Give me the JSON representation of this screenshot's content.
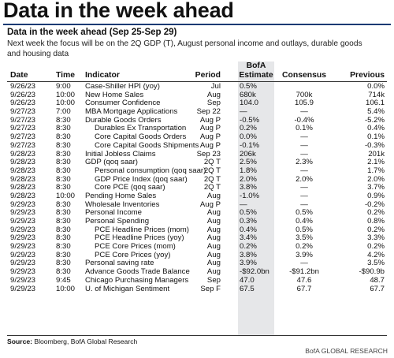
{
  "title": "Data in the week ahead",
  "subtitle": "Data in the week ahead (Sep 25-Sep 29)",
  "description": "Next week the focus will be on the 2Q GDP (T), August personal income and outlays, durable goods and housing data",
  "headers": {
    "date": "Date",
    "time": "Time",
    "indicator": "Indicator",
    "period": "Period",
    "bofa_line1": "BofA",
    "bofa_line2": "Estimate",
    "consensus": "Consensus",
    "previous": "Previous"
  },
  "rows": [
    {
      "date": "9/26/23",
      "time": "9:00",
      "indicator": "Case-Shiller HPI (yoy)",
      "indent": false,
      "period": "Jul",
      "bofa": "0.5%",
      "consensus": "",
      "previous": "0.0%"
    },
    {
      "date": "9/26/23",
      "time": "10:00",
      "indicator": "New Home Sales",
      "indent": false,
      "period": "Aug",
      "bofa": "680k",
      "consensus": "700k",
      "previous": "714k"
    },
    {
      "date": "9/26/23",
      "time": "10:00",
      "indicator": "Consumer Confidence",
      "indent": false,
      "period": "Sep",
      "bofa": "104.0",
      "consensus": "105.9",
      "previous": "106.1"
    },
    {
      "date": "9/27/23",
      "time": "7:00",
      "indicator": "MBA Mortgage Applications",
      "indent": false,
      "period": "Sep 22",
      "bofa": "—",
      "consensus": "—",
      "previous": "5.4%"
    },
    {
      "date": "9/27/23",
      "time": "8:30",
      "indicator": "Durable Goods Orders",
      "indent": false,
      "period": "Aug P",
      "bofa": "-0.5%",
      "consensus": "-0.4%",
      "previous": "-5.2%"
    },
    {
      "date": "9/27/23",
      "time": "8:30",
      "indicator": "Durables Ex Transportation",
      "indent": true,
      "period": "Aug P",
      "bofa": "0.2%",
      "consensus": "0.1%",
      "previous": "0.4%"
    },
    {
      "date": "9/27/23",
      "time": "8:30",
      "indicator": "Core Capital Goods Orders",
      "indent": true,
      "period": "Aug P",
      "bofa": "0.0%",
      "consensus": "—",
      "previous": "0.1%"
    },
    {
      "date": "9/27/23",
      "time": "8:30",
      "indicator": "Core Capital Goods Shipments",
      "indent": true,
      "period": "Aug P",
      "bofa": "-0.1%",
      "consensus": "—",
      "previous": "-0.3%"
    },
    {
      "date": "9/28/23",
      "time": "8:30",
      "indicator": "Initial Jobless Claims",
      "indent": false,
      "period": "Sep 23",
      "bofa": "206k",
      "consensus": "—",
      "previous": "201k"
    },
    {
      "date": "9/28/23",
      "time": "8:30",
      "indicator": "GDP (qoq saar)",
      "indent": false,
      "period": "2Q T",
      "bofa": "2.5%",
      "consensus": "2.3%",
      "previous": "2.1%"
    },
    {
      "date": "9/28/23",
      "time": "8:30",
      "indicator": "Personal consumption (qoq saar)",
      "indent": true,
      "period": "2Q T",
      "bofa": "1.8%",
      "consensus": "—",
      "previous": "1.7%"
    },
    {
      "date": "9/28/23",
      "time": "8:30",
      "indicator": "GDP Price Index (qoq saar)",
      "indent": true,
      "period": "2Q T",
      "bofa": "2.0%",
      "consensus": "2.0%",
      "previous": "2.0%"
    },
    {
      "date": "9/28/23",
      "time": "8:30",
      "indicator": "Core PCE (qoq saar)",
      "indent": true,
      "period": "2Q T",
      "bofa": "3.8%",
      "consensus": "—",
      "previous": "3.7%"
    },
    {
      "date": "9/28/23",
      "time": "10:00",
      "indicator": "Pending Home Sales",
      "indent": false,
      "period": "Aug",
      "bofa": "-1.0%",
      "consensus": "—",
      "previous": "0.9%"
    },
    {
      "date": "9/29/23",
      "time": "8:30",
      "indicator": "Wholesale Inventories",
      "indent": false,
      "period": "Aug P",
      "bofa": "—",
      "consensus": "—",
      "previous": "-0.2%"
    },
    {
      "date": "9/29/23",
      "time": "8:30",
      "indicator": "Personal Income",
      "indent": false,
      "period": "Aug",
      "bofa": "0.5%",
      "consensus": "0.5%",
      "previous": "0.2%"
    },
    {
      "date": "9/29/23",
      "time": "8:30",
      "indicator": "Personal Spending",
      "indent": false,
      "period": "Aug",
      "bofa": "0.3%",
      "consensus": "0.4%",
      "previous": "0.8%"
    },
    {
      "date": "9/29/23",
      "time": "8:30",
      "indicator": "PCE Headline Prices (mom)",
      "indent": true,
      "period": "Aug",
      "bofa": "0.4%",
      "consensus": "0.5%",
      "previous": "0.2%"
    },
    {
      "date": "9/29/23",
      "time": "8:30",
      "indicator": "PCE Headline Prices (yoy)",
      "indent": true,
      "period": "Aug",
      "bofa": "3.4%",
      "consensus": "3.5%",
      "previous": "3.3%"
    },
    {
      "date": "9/29/23",
      "time": "8:30",
      "indicator": "PCE Core Prices (mom)",
      "indent": true,
      "period": "Aug",
      "bofa": "0.2%",
      "consensus": "0.2%",
      "previous": "0.2%"
    },
    {
      "date": "9/29/23",
      "time": "8:30",
      "indicator": "PCE Core Prices (yoy)",
      "indent": true,
      "period": "Aug",
      "bofa": "3.8%",
      "consensus": "3.9%",
      "previous": "4.2%"
    },
    {
      "date": "9/29/23",
      "time": "8:30",
      "indicator": "Personal saving rate",
      "indent": false,
      "period": "Aug",
      "bofa": "3.9%",
      "consensus": "—",
      "previous": "3.5%"
    },
    {
      "date": "9/29/23",
      "time": "8:30",
      "indicator": "Advance Goods Trade Balance",
      "indent": false,
      "period": "Aug",
      "bofa": "-$92.0bn",
      "consensus": "-$91.2bn",
      "previous": "-$90.9b"
    },
    {
      "date": "9/29/23",
      "time": "9:45",
      "indicator": "Chicago Purchasing Managers",
      "indent": false,
      "period": "Sep",
      "bofa": "47.0",
      "consensus": "47.6",
      "previous": "48.7"
    },
    {
      "date": "9/29/23",
      "time": "10:00",
      "indicator": "U. of Michigan Sentiment",
      "indent": false,
      "period": "Sep F",
      "bofa": "67.5",
      "consensus": "67.7",
      "previous": "67.7"
    }
  ],
  "source_label": "Source:",
  "source_text": " Bloomberg, BofA Global Research",
  "brand": "BofA GLOBAL RESEARCH"
}
